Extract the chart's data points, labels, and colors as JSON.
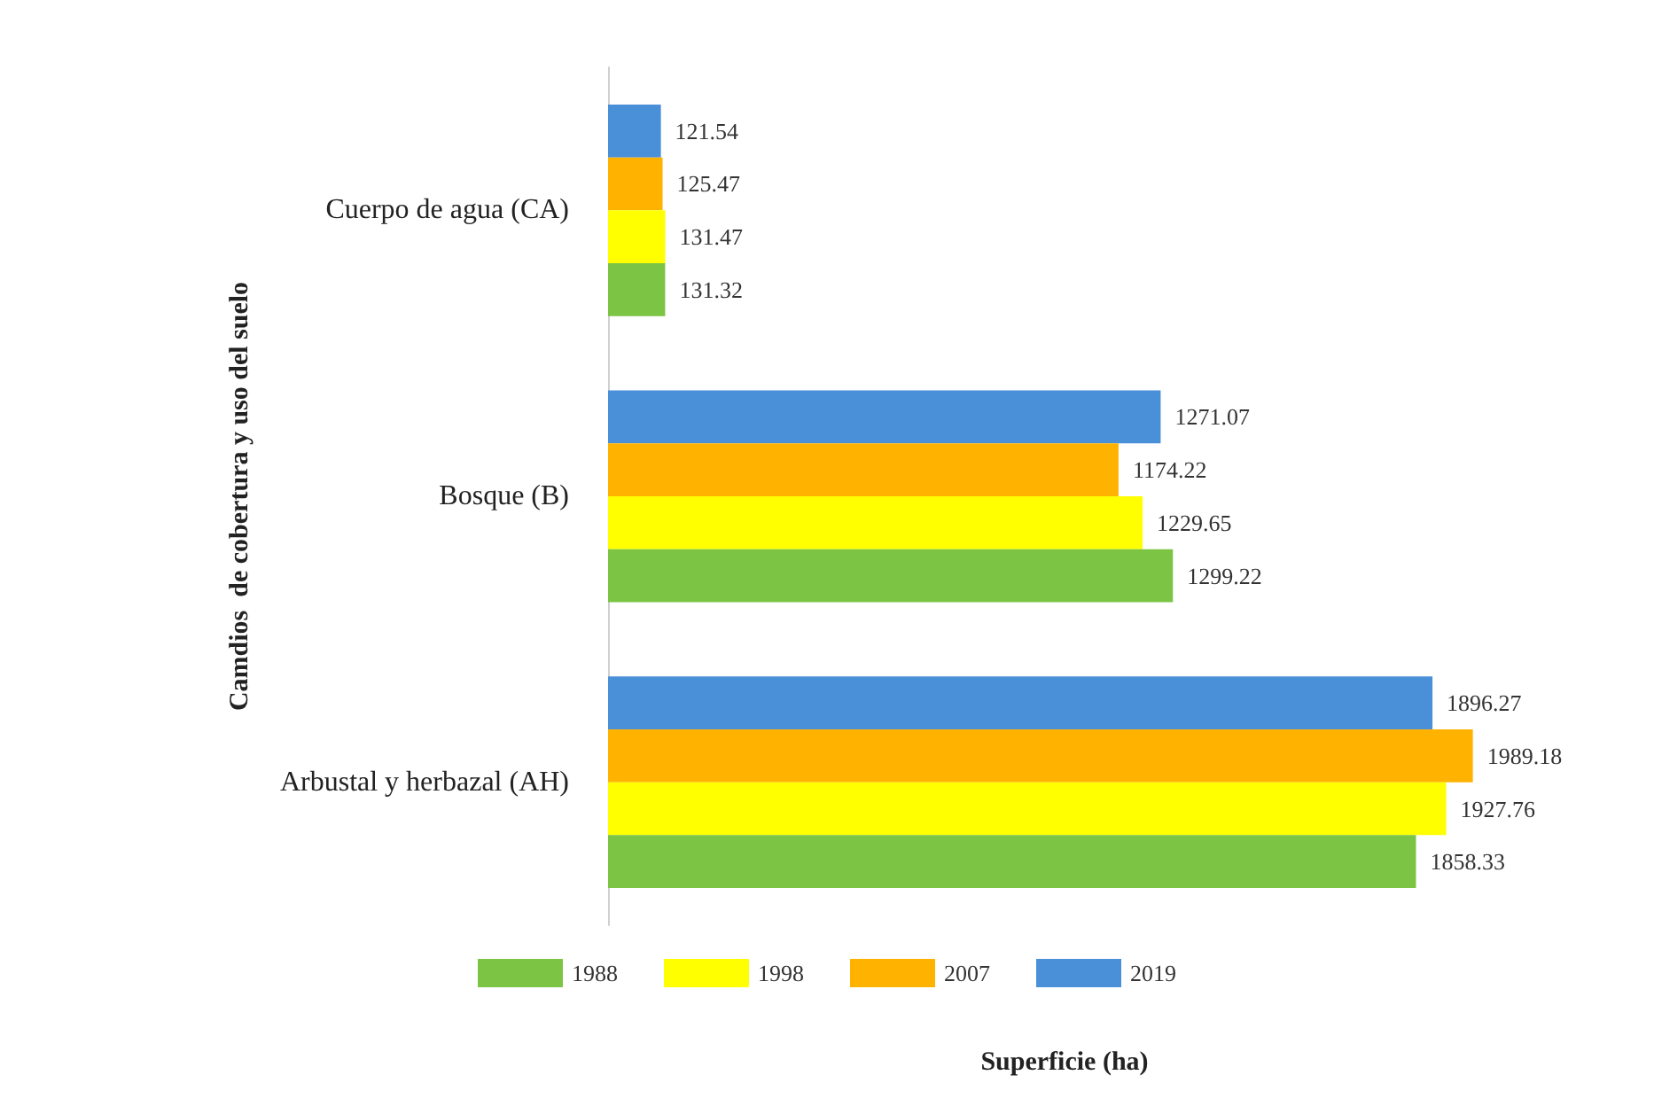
{
  "chart_data": {
    "type": "bar",
    "orientation": "horizontal",
    "xlabel": "Superficie (ha)",
    "ylabel": "Camdios  de cobertura y uso del suelo",
    "categories": [
      "Cuerpo de agua (CA)",
      "Bosque (B)",
      "Arbustal y herbazal (AH)"
    ],
    "series": [
      {
        "name": "1988",
        "color": "#7cc443",
        "values": [
          131.32,
          1299.22,
          1858.33
        ]
      },
      {
        "name": "1998",
        "color": "#ffff00",
        "values": [
          131.47,
          1229.65,
          1927.76
        ]
      },
      {
        "name": "2007",
        "color": "#ffb300",
        "values": [
          125.47,
          1174.22,
          1989.18
        ]
      },
      {
        "name": "2019",
        "color": "#4a90d9",
        "values": [
          121.54,
          1271.07,
          1896.27
        ]
      }
    ],
    "data_labels": true,
    "legend": "bottom",
    "tick_labels": "y"
  }
}
